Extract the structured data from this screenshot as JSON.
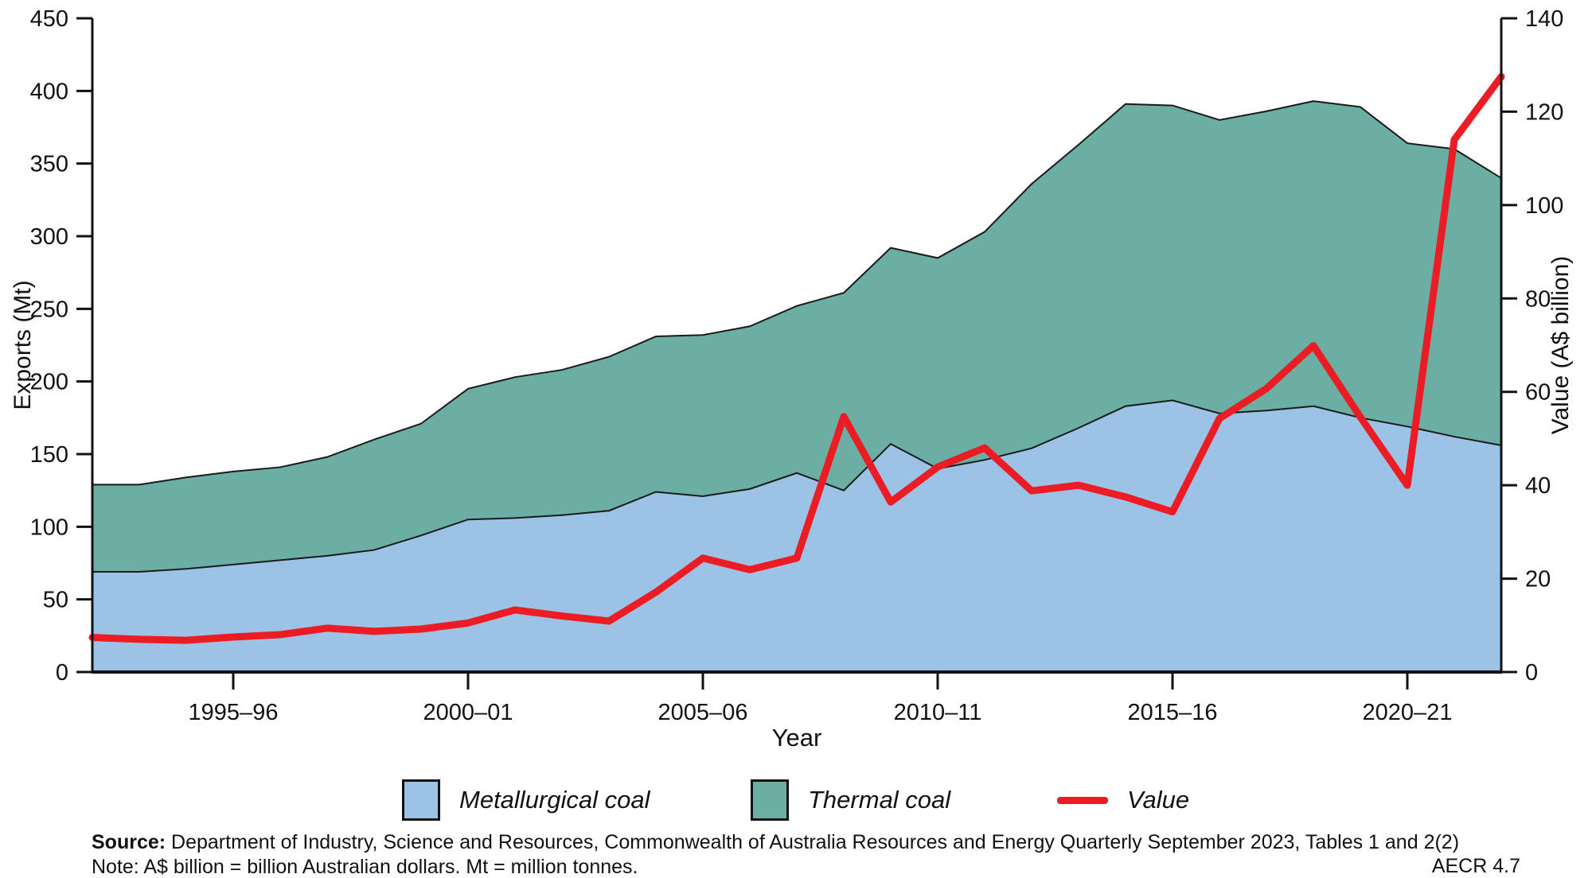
{
  "figure": {
    "id_label": "AECR 4.7"
  },
  "source_note": {
    "source_bold": "Source:",
    "source_rest": " Department of Industry, Science and Resources, Commonwealth of Australia Resources and Energy Quarterly September 2023, Tables 1 and 2(2)",
    "note_line": "Note: A$ billion = billion Australian dollars. Mt = million tonnes."
  },
  "chart_data": {
    "type": "area",
    "subtype": "stacked-area-with-line",
    "title": "",
    "xlabel": "Year",
    "axis_left": {
      "label": "Exports (Mt)",
      "min": 0,
      "max": 450,
      "tick_step": 50
    },
    "axis_right": {
      "label": "Value (A$ billion)",
      "min": 0,
      "max": 140,
      "tick_step": 20
    },
    "grid": false,
    "legend_position": "bottom",
    "x_ticks": [
      "1995–96",
      "2000–01",
      "2005–06",
      "2010–11",
      "2015–16",
      "2020–21"
    ],
    "years": [
      "1992–93",
      "1993–94",
      "1994–95",
      "1995–96",
      "1996–97",
      "1997–98",
      "1998–99",
      "1999–00",
      "2000–01",
      "2001–02",
      "2002–03",
      "2003–04",
      "2004–05",
      "2005–06",
      "2006–07",
      "2007–08",
      "2008–09",
      "2009–10",
      "2010–11",
      "2011–12",
      "2012–13",
      "2013–14",
      "2014–15",
      "2015–16",
      "2016–17",
      "2017–18",
      "2018–19",
      "2019–20",
      "2020–21",
      "2021–22",
      "2022–23"
    ],
    "series": [
      {
        "name": "Metallurgical coal",
        "kind": "area",
        "stacked": true,
        "axis": "left",
        "color": "#9cc2e6",
        "values": [
          69,
          69,
          71,
          74,
          77,
          80,
          84,
          94,
          105,
          106,
          108,
          111,
          124,
          121,
          126,
          137,
          125,
          157,
          140,
          146,
          154,
          168,
          183,
          187,
          178,
          180,
          183,
          175,
          169,
          162,
          156
        ]
      },
      {
        "name": "Thermal coal",
        "kind": "area",
        "stacked": true,
        "axis": "left",
        "color": "#6aaea4",
        "values": [
          60,
          60,
          63,
          64,
          64,
          68,
          76,
          77,
          90,
          97,
          100,
          106,
          107,
          111,
          112,
          115,
          136,
          135,
          145,
          157,
          182,
          195,
          208,
          203,
          202,
          206,
          210,
          214,
          195,
          198,
          184
        ]
      },
      {
        "name": "Value",
        "kind": "line",
        "stacked": false,
        "axis": "right",
        "color": "#ec1c24",
        "values": [
          7.4,
          7.0,
          6.8,
          7.5,
          8.0,
          9.4,
          8.7,
          9.2,
          10.5,
          13.3,
          12.0,
          10.9,
          17.1,
          24.4,
          21.9,
          24.4,
          54.7,
          36.4,
          43.9,
          48.0,
          38.8,
          40.0,
          37.5,
          34.3,
          54.3,
          60.7,
          69.9,
          54.6,
          40.0,
          114.0,
          127.5
        ]
      }
    ],
    "colors": {
      "outline": "#1a1a1a",
      "axis": "#111111",
      "background": "#ffffff"
    }
  }
}
